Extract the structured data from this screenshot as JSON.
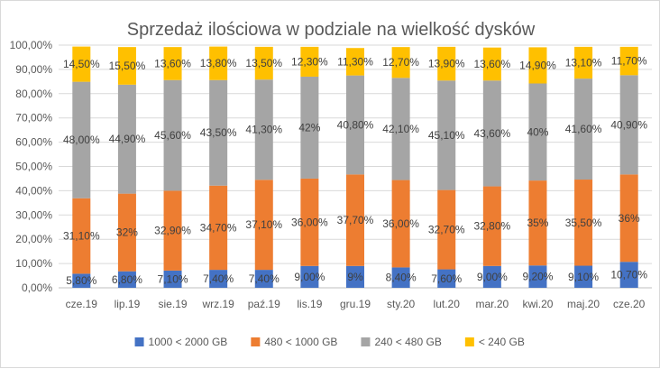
{
  "chart_data": {
    "type": "bar",
    "stacked": true,
    "title": "Sprzedaż ilościowa w podziale na wielkość dysków",
    "categories": [
      "cze.19",
      "lip.19",
      "sie.19",
      "wrz.19",
      "paź.19",
      "lis.19",
      "gru.19",
      "sty.20",
      "lut.20",
      "mar.20",
      "kwi.20",
      "maj.20",
      "cze.20"
    ],
    "ylim": [
      0,
      100
    ],
    "yticks": [
      "0,00%",
      "10,00%",
      "20,00%",
      "30,00%",
      "40,00%",
      "50,00%",
      "60,00%",
      "70,00%",
      "80,00%",
      "90,00%",
      "100,00%"
    ],
    "grid": true,
    "legend_position": "bottom",
    "series": [
      {
        "name": "1000 < 2000 GB",
        "color": "#4472c4",
        "values": [
          5.8,
          6.8,
          7.1,
          7.4,
          7.4,
          9.0,
          9.0,
          8.4,
          7.6,
          9.0,
          9.2,
          9.1,
          10.7
        ],
        "labels": [
          "5,80%",
          "6,80%",
          "7,10%",
          "7,40%",
          "7,40%",
          "9,00%",
          "9%",
          "8,40%",
          "7,60%",
          "9,00%",
          "9,20%",
          "9,10%",
          "10,70%"
        ]
      },
      {
        "name": "480 < 1000 GB",
        "color": "#ed7d31",
        "values": [
          31.1,
          32,
          32.9,
          34.7,
          37.1,
          36.0,
          37.7,
          36.0,
          32.7,
          32.8,
          35,
          35.5,
          36
        ],
        "labels": [
          "31,10%",
          "32%",
          "32,90%",
          "34,70%",
          "37,10%",
          "36,00%",
          "37,70%",
          "36,00%",
          "32,70%",
          "32,80%",
          "35%",
          "35,50%",
          "36%"
        ]
      },
      {
        "name": "240 < 480 GB",
        "color": "#a5a5a5",
        "values": [
          48.0,
          44.9,
          45.6,
          43.5,
          41.3,
          42,
          40.8,
          42.1,
          45.1,
          43.6,
          40,
          41.6,
          40.9
        ],
        "labels": [
          "48,00%",
          "44,90%",
          "45,60%",
          "43,50%",
          "41,30%",
          "42%",
          "40,80%",
          "42,10%",
          "45,10%",
          "43,60%",
          "40%",
          "41,60%",
          "40,90%"
        ]
      },
      {
        "name": "< 240 GB",
        "color": "#ffc000",
        "values": [
          14.5,
          15.5,
          13.6,
          13.8,
          13.5,
          12.3,
          11.3,
          12.7,
          13.9,
          13.6,
          14.9,
          13.1,
          11.7
        ],
        "labels": [
          "14,50%",
          "15,50%",
          "13,60%",
          "13,80%",
          "13,50%",
          "12,30%",
          "11,30%",
          "12,70%",
          "13,90%",
          "13,60%",
          "14,90%",
          "13,10%",
          "11,70%"
        ]
      }
    ]
  }
}
